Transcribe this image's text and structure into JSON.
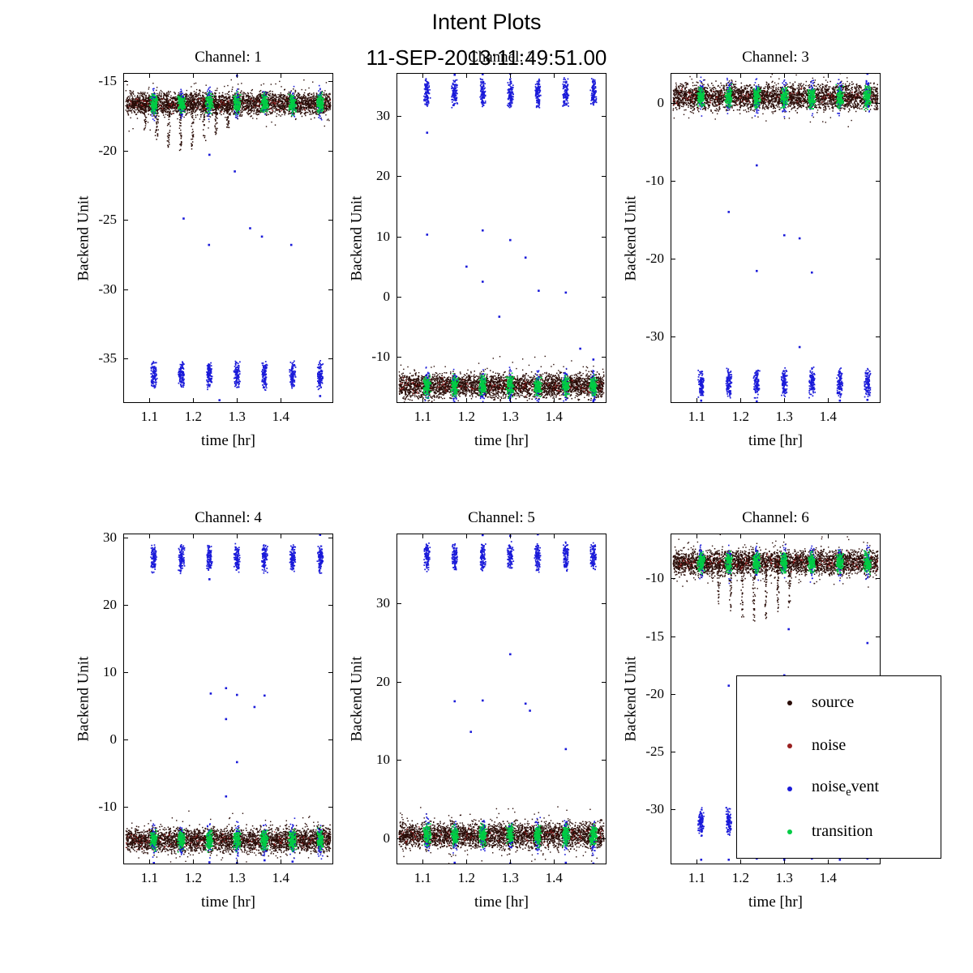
{
  "figure": {
    "title": "Intent Plots",
    "subtitle": "11-SEP-2013:11:49:51.00",
    "xlabel": "time [hr]",
    "ylabel": "Backend Unit",
    "xlim": [
      1.04,
      1.52
    ],
    "xticks": [
      1.1,
      1.2,
      1.3,
      1.4
    ],
    "event_x": [
      1.11,
      1.173,
      1.237,
      1.3,
      1.363,
      1.427,
      1.49
    ]
  },
  "colors": {
    "source": "#2a0d08",
    "noise": "#992020",
    "noise_event": "#1a1ad9",
    "transition": "#00cc44",
    "axis": "#000000",
    "background": "#ffffff"
  },
  "legend": {
    "entries": [
      {
        "key": "source",
        "label": "source"
      },
      {
        "key": "noise",
        "label": "noise"
      },
      {
        "key": "noise_event",
        "label_pre": "noise",
        "label_sub": "e",
        "label_post": "vent"
      },
      {
        "key": "transition",
        "label": "transition"
      }
    ]
  },
  "chart_data": [
    {
      "type": "scatter",
      "title": "Channel: 1",
      "ylim": [
        -38.2,
        -14.4
      ],
      "yticks": [
        -15,
        -20,
        -25,
        -30,
        -35
      ],
      "source_band": {
        "y_center": -16.6,
        "y_spread": 0.75
      },
      "spikes": {
        "x": [
          1.09,
          1.117,
          1.144,
          1.171,
          1.198,
          1.225,
          1.252,
          1.279
        ],
        "tip_y": [
          -18.6,
          -19.2,
          -19.8,
          -20.1,
          -19.9,
          -19.5,
          -18.9,
          -18.4
        ]
      },
      "noise_event_band": {
        "y_center": -36.2,
        "y_spread": 0.95
      },
      "noise_event_outliers": [
        [
          1.178,
          -24.9
        ],
        [
          1.236,
          -26.8
        ],
        [
          1.295,
          -21.5
        ],
        [
          1.33,
          -25.6
        ],
        [
          1.357,
          -26.2
        ],
        [
          1.424,
          -26.8
        ],
        [
          1.237,
          -20.3
        ],
        [
          1.3,
          -14.6
        ],
        [
          1.26,
          -38.0
        ],
        [
          1.49,
          -37.7
        ]
      ]
    },
    {
      "type": "scatter",
      "title": "Channel: 2",
      "ylim": [
        -17.6,
        37.1
      ],
      "yticks": [
        30,
        20,
        10,
        0,
        -10
      ],
      "source_band": {
        "y_center": -14.8,
        "y_spread": 1.9
      },
      "noise_event_band": {
        "y_center": 33.8,
        "y_spread": 2.2
      },
      "noise_event_outliers": [
        [
          1.11,
          10.3
        ],
        [
          1.237,
          11.0
        ],
        [
          1.2,
          5.0
        ],
        [
          1.237,
          2.5
        ],
        [
          1.275,
          -3.3
        ],
        [
          1.3,
          9.4
        ],
        [
          1.335,
          6.5
        ],
        [
          1.365,
          1.0
        ],
        [
          1.427,
          0.7
        ],
        [
          1.46,
          -8.6
        ],
        [
          1.49,
          -10.4
        ],
        [
          1.11,
          27.2
        ],
        [
          1.237,
          36.9
        ],
        [
          1.3,
          37.0
        ],
        [
          1.173,
          36.8
        ],
        [
          1.49,
          -17.4
        ]
      ]
    },
    {
      "type": "scatter",
      "title": "Channel: 3",
      "ylim": [
        -38.6,
        3.9
      ],
      "yticks": [
        0,
        -10,
        -20,
        -30
      ],
      "source_band": {
        "y_center": 0.8,
        "y_spread": 1.5
      },
      "noise_event_band": {
        "y_center": -36.0,
        "y_spread": 1.7
      },
      "noise_event_outliers": [
        [
          1.173,
          -14.0
        ],
        [
          1.237,
          -8.0
        ],
        [
          1.237,
          -21.6
        ],
        [
          1.3,
          -17.0
        ],
        [
          1.335,
          -17.4
        ],
        [
          1.363,
          -21.8
        ],
        [
          1.335,
          -31.4
        ],
        [
          1.237,
          -38.4
        ],
        [
          1.427,
          -38.3
        ],
        [
          1.49,
          -38.2
        ],
        [
          1.11,
          -38.3
        ],
        [
          1.49,
          3.8
        ]
      ]
    },
    {
      "type": "scatter",
      "title": "Channel: 4",
      "ylim": [
        -18.6,
        30.6
      ],
      "yticks": [
        30,
        20,
        10,
        0,
        -10
      ],
      "source_band": {
        "y_center": -15.0,
        "y_spread": 1.7
      },
      "noise_event_band": {
        "y_center": 26.9,
        "y_spread": 1.9
      },
      "noise_event_outliers": [
        [
          1.237,
          23.8
        ],
        [
          1.275,
          7.6
        ],
        [
          1.24,
          6.8
        ],
        [
          1.275,
          3.0
        ],
        [
          1.3,
          6.6
        ],
        [
          1.363,
          6.5
        ],
        [
          1.34,
          4.8
        ],
        [
          1.3,
          -3.4
        ],
        [
          1.275,
          -8.5
        ],
        [
          1.11,
          -18.4
        ],
        [
          1.237,
          -18.3
        ],
        [
          1.3,
          -18.4
        ],
        [
          1.363,
          -18.0
        ],
        [
          1.427,
          -18.2
        ],
        [
          1.173,
          -16.8
        ],
        [
          1.49,
          30.4
        ]
      ]
    },
    {
      "type": "scatter",
      "title": "Channel: 5",
      "ylim": [
        -3.3,
        38.9
      ],
      "yticks": [
        30,
        20,
        10,
        0
      ],
      "source_band": {
        "y_center": 0.4,
        "y_spread": 1.5
      },
      "noise_event_band": {
        "y_center": 35.9,
        "y_spread": 1.7
      },
      "noise_event_outliers": [
        [
          1.173,
          17.5
        ],
        [
          1.237,
          17.6
        ],
        [
          1.21,
          13.6
        ],
        [
          1.3,
          23.5
        ],
        [
          1.335,
          17.2
        ],
        [
          1.345,
          16.3
        ],
        [
          1.427,
          11.4
        ],
        [
          1.237,
          38.7
        ],
        [
          1.3,
          38.6
        ],
        [
          1.363,
          38.8
        ],
        [
          1.173,
          -3.1
        ],
        [
          1.3,
          -3.2
        ],
        [
          1.427,
          -3.1
        ],
        [
          1.49,
          -3.2
        ]
      ]
    },
    {
      "type": "scatter",
      "title": "Channel: 6",
      "ylim": [
        -34.8,
        -6.1
      ],
      "yticks": [
        -10,
        -15,
        -20,
        -25,
        -30
      ],
      "source_band": {
        "y_center": -8.6,
        "y_spread": 1.0
      },
      "spikes": {
        "x": [
          1.15,
          1.177,
          1.204,
          1.231,
          1.258,
          1.285,
          1.312
        ],
        "tip_y": [
          -12.2,
          -12.8,
          -13.4,
          -13.8,
          -13.5,
          -13.0,
          -12.5
        ]
      },
      "noise_event_band": {
        "y_center": -31.2,
        "y_spread": 1.15
      },
      "noise_event_outliers": [
        [
          1.173,
          -19.3
        ],
        [
          1.31,
          -14.4
        ],
        [
          1.49,
          -15.6
        ],
        [
          1.3,
          -18.4
        ],
        [
          1.173,
          -34.4
        ],
        [
          1.237,
          -34.3
        ],
        [
          1.3,
          -34.4
        ],
        [
          1.363,
          -34.3
        ],
        [
          1.427,
          -34.4
        ],
        [
          1.49,
          -34.3
        ],
        [
          1.11,
          -34.4
        ]
      ]
    }
  ]
}
